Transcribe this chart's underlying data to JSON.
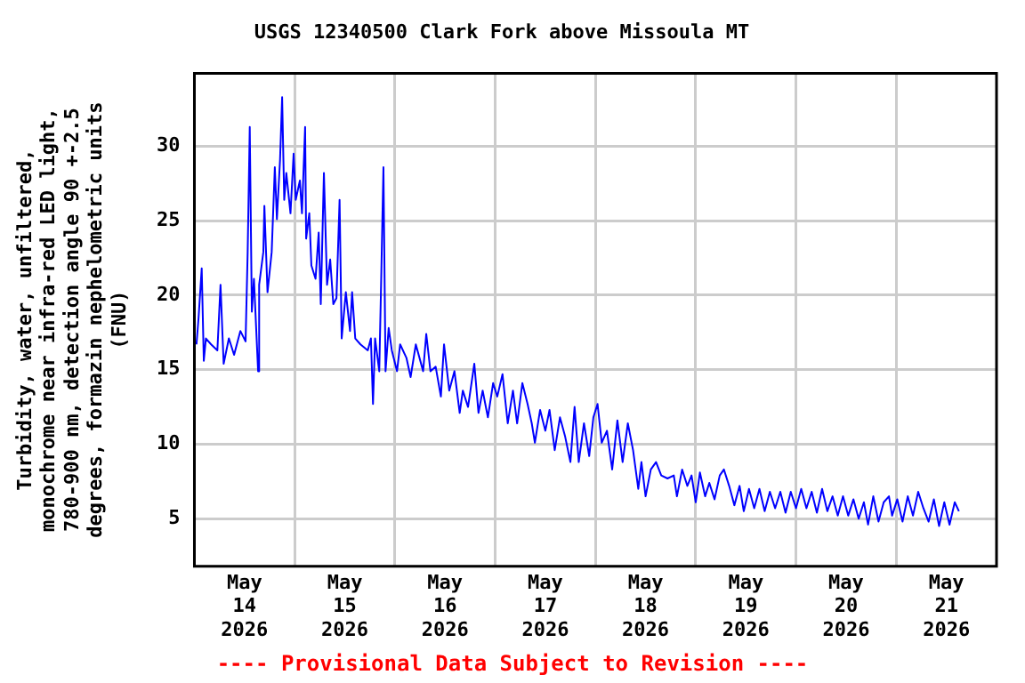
{
  "chart_data": {
    "type": "line",
    "title": "USGS 12340500 Clark Fork above Missoula MT",
    "ylabel": "Turbidity, water, unfiltered,\nmonochrome near infra-red LED light,\n780-900 nm, detection angle 90 +-2.5\ndegrees, formazin nephelometric units\n(FNU)",
    "annotations": [
      "---- Provisional Data Subject to Revision ----"
    ],
    "xlim": [
      "2026-05-14T00:00",
      "2026-05-22T00:00"
    ],
    "xticks": [
      {
        "value": "2026-05-14T12:00",
        "label": "May 14 2026"
      },
      {
        "value": "2026-05-15T00:00",
        "label": null
      },
      {
        "value": "2026-05-15T12:00",
        "label": "May 15 2026"
      },
      {
        "value": "2026-05-16T00:00",
        "label": null
      },
      {
        "value": "2026-05-16T12:00",
        "label": "May 16 2026"
      },
      {
        "value": "2026-05-17T00:00",
        "label": null
      },
      {
        "value": "2026-05-17T12:00",
        "label": "May 17 2026"
      },
      {
        "value": "2026-05-18T00:00",
        "label": null
      },
      {
        "value": "2026-05-18T12:00",
        "label": "May 18 2026"
      },
      {
        "value": "2026-05-19T00:00",
        "label": null
      },
      {
        "value": "2026-05-19T12:00",
        "label": "May 19 2026"
      },
      {
        "value": "2026-05-20T00:00",
        "label": null
      },
      {
        "value": "2026-05-20T12:00",
        "label": "May 20 2026"
      },
      {
        "value": "2026-05-21T00:00",
        "label": null
      },
      {
        "value": "2026-05-21T12:00",
        "label": "May 21 2026"
      }
    ],
    "ylim": [
      1.8,
      34.9
    ],
    "yticks": [
      5,
      10,
      15,
      20,
      25,
      30
    ],
    "grid": true,
    "marker": "none",
    "line_style": "solid",
    "x": [
      "2026-05-14T00:30",
      "2026-05-14T01:00",
      "2026-05-14T01:45",
      "2026-05-14T02:15",
      "2026-05-14T02:45",
      "2026-05-14T04:00",
      "2026-05-14T05:30",
      "2026-05-14T06:15",
      "2026-05-14T07:00",
      "2026-05-14T08:15",
      "2026-05-14T09:30",
      "2026-05-14T11:00",
      "2026-05-14T12:15",
      "2026-05-14T12:45",
      "2026-05-14T13:15",
      "2026-05-14T13:45",
      "2026-05-14T14:15",
      "2026-05-14T15:15",
      "2026-05-14T15:30",
      "2026-05-14T16:30",
      "2026-05-14T16:45",
      "2026-05-14T17:30",
      "2026-05-14T18:30",
      "2026-05-14T19:15",
      "2026-05-14T19:45",
      "2026-05-14T20:30",
      "2026-05-14T21:00",
      "2026-05-14T21:30",
      "2026-05-14T22:00",
      "2026-05-14T23:00",
      "2026-05-14T23:45",
      "2026-05-15T00:15",
      "2026-05-15T01:15",
      "2026-05-15T01:45",
      "2026-05-15T02:30",
      "2026-05-15T02:45",
      "2026-05-15T03:30",
      "2026-05-15T04:00",
      "2026-05-15T05:00",
      "2026-05-15T05:45",
      "2026-05-15T06:15",
      "2026-05-15T07:00",
      "2026-05-15T07:45",
      "2026-05-15T08:30",
      "2026-05-15T09:15",
      "2026-05-15T10:00",
      "2026-05-15T10:45",
      "2026-05-15T11:15",
      "2026-05-15T12:15",
      "2026-05-15T13:15",
      "2026-05-15T13:45",
      "2026-05-15T14:30",
      "2026-05-15T15:45",
      "2026-05-15T17:30",
      "2026-05-15T18:15",
      "2026-05-15T18:45",
      "2026-05-15T19:15",
      "2026-05-15T20:15",
      "2026-05-15T20:45",
      "2026-05-15T21:15",
      "2026-05-15T21:45",
      "2026-05-15T22:30",
      "2026-05-15T23:15",
      "2026-05-16T00:30",
      "2026-05-16T01:15",
      "2026-05-16T02:45",
      "2026-05-16T03:45",
      "2026-05-16T05:00",
      "2026-05-16T06:45",
      "2026-05-16T07:30",
      "2026-05-16T08:30",
      "2026-05-16T09:45",
      "2026-05-16T11:00",
      "2026-05-16T11:45",
      "2026-05-16T13:00",
      "2026-05-16T14:15",
      "2026-05-16T15:30",
      "2026-05-16T16:15",
      "2026-05-16T17:30",
      "2026-05-16T19:00",
      "2026-05-16T20:00",
      "2026-05-16T21:00",
      "2026-05-16T22:15",
      "2026-05-16T23:30",
      "2026-05-17T00:30",
      "2026-05-17T01:45",
      "2026-05-17T03:00",
      "2026-05-17T04:15",
      "2026-05-17T05:15",
      "2026-05-17T06:30",
      "2026-05-17T07:45",
      "2026-05-17T08:45",
      "2026-05-17T09:30",
      "2026-05-17T10:45",
      "2026-05-17T12:00",
      "2026-05-17T13:00",
      "2026-05-17T14:15",
      "2026-05-17T15:30",
      "2026-05-17T16:45",
      "2026-05-17T18:00",
      "2026-05-17T19:00",
      "2026-05-17T20:00",
      "2026-05-17T21:15",
      "2026-05-17T22:30",
      "2026-05-17T23:30",
      "2026-05-18T00:30",
      "2026-05-18T01:30",
      "2026-05-18T02:45",
      "2026-05-18T04:00",
      "2026-05-18T05:15",
      "2026-05-18T06:30",
      "2026-05-18T07:45",
      "2026-05-18T09:00",
      "2026-05-18T10:15",
      "2026-05-18T11:00",
      "2026-05-18T12:00",
      "2026-05-18T13:15",
      "2026-05-18T14:30",
      "2026-05-18T15:45",
      "2026-05-18T17:15",
      "2026-05-18T18:45",
      "2026-05-18T19:30",
      "2026-05-18T20:45",
      "2026-05-18T22:00",
      "2026-05-18T23:00",
      "2026-05-19T00:00",
      "2026-05-19T01:00",
      "2026-05-19T02:15",
      "2026-05-19T03:15",
      "2026-05-19T04:30",
      "2026-05-19T05:45",
      "2026-05-19T06:45",
      "2026-05-19T08:00",
      "2026-05-19T09:15",
      "2026-05-19T10:30",
      "2026-05-19T11:30",
      "2026-05-19T12:45",
      "2026-05-19T14:00",
      "2026-05-19T15:15",
      "2026-05-19T16:30",
      "2026-05-19T17:45",
      "2026-05-19T19:00",
      "2026-05-19T20:15",
      "2026-05-19T21:30",
      "2026-05-19T22:45",
      "2026-05-20T00:00",
      "2026-05-20T01:15",
      "2026-05-20T02:30",
      "2026-05-20T03:45",
      "2026-05-20T05:00",
      "2026-05-20T06:15",
      "2026-05-20T07:30",
      "2026-05-20T08:45",
      "2026-05-20T10:00",
      "2026-05-20T11:15",
      "2026-05-20T12:30",
      "2026-05-20T13:45",
      "2026-05-20T15:00",
      "2026-05-20T16:15",
      "2026-05-20T17:15",
      "2026-05-20T18:30",
      "2026-05-20T19:45",
      "2026-05-20T21:00",
      "2026-05-20T22:15",
      "2026-05-20T23:00",
      "2026-05-21T00:15",
      "2026-05-21T01:30",
      "2026-05-21T02:45",
      "2026-05-21T04:00",
      "2026-05-21T05:15",
      "2026-05-21T06:30",
      "2026-05-21T07:45",
      "2026-05-21T09:00",
      "2026-05-21T10:15",
      "2026-05-21T11:30",
      "2026-05-21T12:45",
      "2026-05-21T14:00",
      "2026-05-21T15:00"
    ],
    "series": [
      {
        "color": "#0000ff",
        "values": [
          16.7,
          18.5,
          21.8,
          15.6,
          17.1,
          16.7,
          16.3,
          20.7,
          15.4,
          17.1,
          16.0,
          17.6,
          16.9,
          22.9,
          31.3,
          18.9,
          21.1,
          14.9,
          20.7,
          22.9,
          26.0,
          20.2,
          22.9,
          28.6,
          25.1,
          29.1,
          33.3,
          26.4,
          28.2,
          25.5,
          29.5,
          26.4,
          27.7,
          25.5,
          31.3,
          23.8,
          25.5,
          22.0,
          21.1,
          24.2,
          19.4,
          28.2,
          20.7,
          22.4,
          19.4,
          19.8,
          26.4,
          17.1,
          20.2,
          17.6,
          20.2,
          17.1,
          16.7,
          16.3,
          17.1,
          12.7,
          17.1,
          14.9,
          21.6,
          28.6,
          14.9,
          17.8,
          16.3,
          14.9,
          16.7,
          15.8,
          14.5,
          16.7,
          14.9,
          17.4,
          14.9,
          15.2,
          13.2,
          16.7,
          13.6,
          14.9,
          12.1,
          13.6,
          12.5,
          15.4,
          12.1,
          13.6,
          11.8,
          14.1,
          13.2,
          14.7,
          11.4,
          13.6,
          11.4,
          14.1,
          12.7,
          11.4,
          10.1,
          12.3,
          10.9,
          12.3,
          9.6,
          11.8,
          10.5,
          8.8,
          12.5,
          8.8,
          11.4,
          9.2,
          11.8,
          12.7,
          10.1,
          10.9,
          8.3,
          11.6,
          8.8,
          11.4,
          9.6,
          7.0,
          8.8,
          6.5,
          8.3,
          8.8,
          7.9,
          7.7,
          7.9,
          6.5,
          8.3,
          7.2,
          7.9,
          6.1,
          8.1,
          6.5,
          7.4,
          6.3,
          7.9,
          8.3,
          7.2,
          5.9,
          7.2,
          5.5,
          7.0,
          5.7,
          7.0,
          5.5,
          6.8,
          5.7,
          6.8,
          5.4,
          6.8,
          5.7,
          7.0,
          5.7,
          6.8,
          5.4,
          7.0,
          5.5,
          6.5,
          5.2,
          6.5,
          5.2,
          6.3,
          5.0,
          6.1,
          4.6,
          6.5,
          4.8,
          6.1,
          6.5,
          5.2,
          6.3,
          4.8,
          6.5,
          5.2,
          6.8,
          5.7,
          4.8,
          6.3,
          4.5,
          6.1,
          4.6,
          6.1,
          5.5
        ]
      }
    ]
  }
}
